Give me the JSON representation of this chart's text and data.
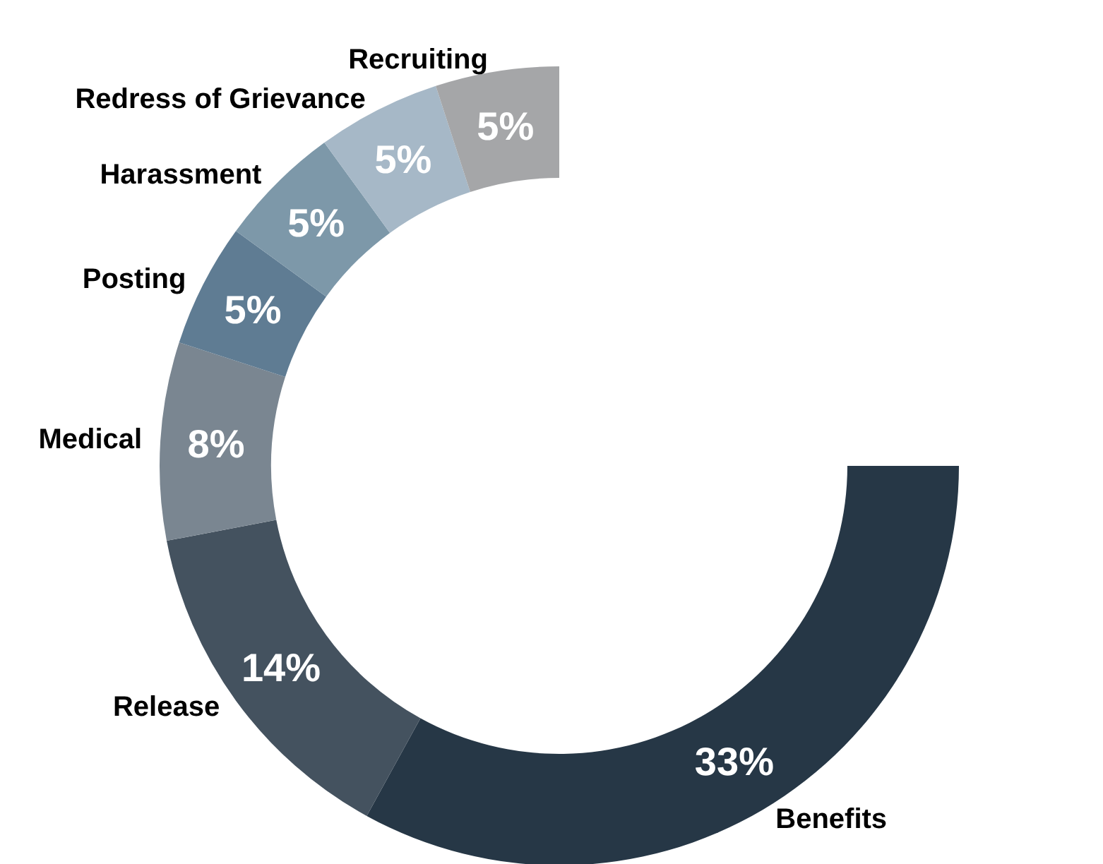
{
  "chart_data": {
    "type": "donut",
    "categories": [
      "Benefits",
      "Release",
      "Medical",
      "Posting",
      "Harassment",
      "Redress of Grievance",
      "Recruiting"
    ],
    "values": [
      33,
      14,
      8,
      5,
      5,
      5,
      5
    ],
    "value_labels": [
      "33%",
      "14%",
      "8%",
      "5%",
      "5%",
      "5%",
      "5%"
    ],
    "colors": [
      "#263746",
      "#44525f",
      "#7a8691",
      "#5f7c93",
      "#7d98a9",
      "#a6b8c7",
      "#a5a6a8"
    ]
  }
}
